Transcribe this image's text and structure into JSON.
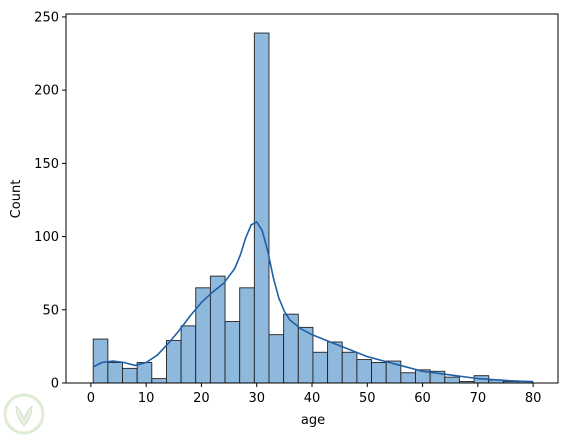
{
  "chart_data": {
    "type": "bar",
    "subtype": "histogram-with-kde",
    "title": "",
    "xlabel": "age",
    "ylabel": "Count",
    "xlim": [
      -4.5,
      84.5
    ],
    "ylim": [
      0,
      252
    ],
    "xticks": [
      0,
      10,
      20,
      30,
      40,
      50,
      60,
      70,
      80
    ],
    "yticks": [
      0,
      50,
      100,
      150,
      200,
      250
    ],
    "grid": false,
    "legend": "none",
    "bin_width": 2.65,
    "bins": [
      {
        "x0": 0.42,
        "count": 30
      },
      {
        "x0": 3.07,
        "count": 14
      },
      {
        "x0": 5.72,
        "count": 10
      },
      {
        "x0": 8.37,
        "count": 14
      },
      {
        "x0": 11.02,
        "count": 3
      },
      {
        "x0": 13.67,
        "count": 29
      },
      {
        "x0": 16.32,
        "count": 39
      },
      {
        "x0": 18.97,
        "count": 65
      },
      {
        "x0": 21.62,
        "count": 73
      },
      {
        "x0": 24.27,
        "count": 42
      },
      {
        "x0": 26.92,
        "count": 65
      },
      {
        "x0": 29.57,
        "count": 239
      },
      {
        "x0": 32.22,
        "count": 33
      },
      {
        "x0": 34.87,
        "count": 47
      },
      {
        "x0": 37.52,
        "count": 38
      },
      {
        "x0": 40.17,
        "count": 21
      },
      {
        "x0": 42.82,
        "count": 28
      },
      {
        "x0": 45.47,
        "count": 21
      },
      {
        "x0": 48.12,
        "count": 16
      },
      {
        "x0": 50.77,
        "count": 14
      },
      {
        "x0": 53.42,
        "count": 15
      },
      {
        "x0": 56.07,
        "count": 7
      },
      {
        "x0": 58.72,
        "count": 9
      },
      {
        "x0": 61.37,
        "count": 8
      },
      {
        "x0": 64.02,
        "count": 4
      },
      {
        "x0": 66.67,
        "count": 1
      },
      {
        "x0": 69.32,
        "count": 5
      },
      {
        "x0": 71.97,
        "count": 2
      },
      {
        "x0": 74.62,
        "count": 1
      },
      {
        "x0": 77.27,
        "count": 1
      }
    ],
    "kde": {
      "x": [
        0.4,
        2,
        4,
        6,
        8,
        10,
        12,
        14,
        16,
        18,
        20,
        22,
        24,
        26,
        27,
        28,
        29,
        30,
        31,
        32,
        33,
        34,
        35,
        36,
        38,
        40,
        42,
        44,
        46,
        48,
        50,
        52,
        54,
        56,
        58,
        60,
        62,
        64,
        66,
        68,
        70,
        72,
        74,
        76,
        78,
        80
      ],
      "y": [
        11,
        14,
        15,
        14,
        12,
        14,
        19,
        27,
        36,
        46,
        55,
        62,
        68,
        78,
        87,
        99,
        108,
        110,
        104,
        90,
        72,
        58,
        49,
        43,
        37,
        33,
        30,
        27,
        24,
        21,
        18,
        16,
        14,
        12,
        10,
        8,
        7,
        6,
        5,
        4,
        3,
        2.5,
        2,
        1.5,
        1.2,
        1
      ]
    },
    "colors": {
      "bar_fill": "#8fb8dd",
      "bar_edge": "#222222",
      "kde_line": "#1f5fa6",
      "axis": "#000000"
    }
  }
}
